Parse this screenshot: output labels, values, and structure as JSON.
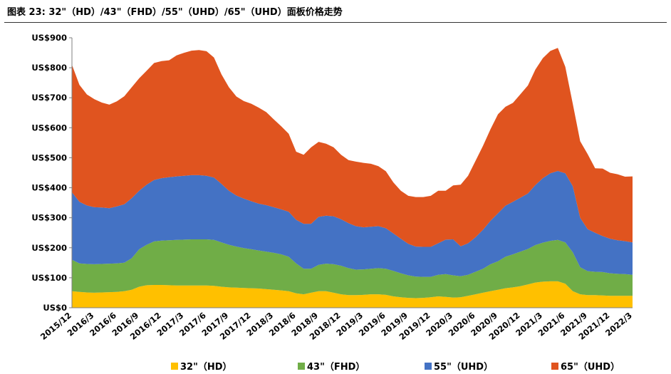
{
  "title": "图表 23: 32\"（HD）/43\"（FHD）/55\"（UHD）/65\"（UHD）面板价格走势",
  "chart_data": {
    "type": "area",
    "stacked": true,
    "title": "图表 23: 32\"（HD）/43\"（FHD）/55\"（UHD）/65\"（UHD）面板价格走势",
    "ylim": [
      0,
      900
    ],
    "y_ticks": [
      0,
      100,
      200,
      300,
      400,
      500,
      600,
      700,
      800,
      900
    ],
    "y_tick_labels": [
      "US$0",
      "US$100",
      "US$200",
      "US$300",
      "US$400",
      "US$500",
      "US$600",
      "US$700",
      "US$800",
      "US$900"
    ],
    "x_tick_labels": [
      "2015/12",
      "2016/3",
      "2016/6",
      "2016/9",
      "2016/12",
      "2017/3",
      "2017/6",
      "2017/9",
      "2017/12",
      "2018/3",
      "2018/6",
      "2018/9",
      "2018/12",
      "2019/3",
      "2019/6",
      "2019/9",
      "2019/12",
      "2020/3",
      "2020/6",
      "2020/9",
      "2020/12",
      "2021/3",
      "2021/6",
      "2021/9",
      "2021/12",
      "2022/3"
    ],
    "x_start": "2015/12",
    "x_end": "2022/3",
    "grid": false,
    "legend_position": "bottom",
    "series": [
      {
        "name": "32\"（HD）",
        "color": "#FFC000",
        "values": [
          55,
          53,
          51,
          50,
          51,
          52,
          53,
          55,
          60,
          70,
          75,
          76,
          76,
          75,
          74,
          74,
          74,
          74,
          74,
          73,
          70,
          68,
          67,
          66,
          65,
          64,
          62,
          60,
          58,
          55,
          48,
          45,
          50,
          55,
          55,
          50,
          45,
          42,
          42,
          43,
          45,
          45,
          43,
          38,
          35,
          33,
          32,
          33,
          35,
          38,
          36,
          34,
          35,
          40,
          45,
          50,
          55,
          60,
          65,
          68,
          72,
          78,
          84,
          87,
          88,
          88,
          80,
          55,
          45,
          42,
          42,
          41,
          40,
          40,
          40,
          40
        ]
      },
      {
        "name": "43\"（FHD）",
        "color": "#70AD47",
        "values": [
          105,
          95,
          95,
          95,
          95,
          95,
          95,
          95,
          105,
          125,
          135,
          145,
          148,
          150,
          152,
          153,
          154,
          154,
          154,
          153,
          148,
          142,
          137,
          133,
          130,
          127,
          125,
          123,
          120,
          115,
          100,
          85,
          80,
          88,
          92,
          95,
          95,
          90,
          85,
          85,
          85,
          87,
          87,
          85,
          80,
          75,
          72,
          70,
          68,
          72,
          76,
          74,
          70,
          70,
          75,
          80,
          90,
          95,
          105,
          110,
          115,
          118,
          125,
          130,
          135,
          138,
          138,
          130,
          90,
          80,
          78,
          78,
          75,
          73,
          72,
          70
        ]
      },
      {
        "name": "55\"（UHD）",
        "color": "#4472C4",
        "values": [
          225,
          205,
          195,
          190,
          188,
          185,
          190,
          195,
          200,
          195,
          200,
          205,
          208,
          210,
          212,
          213,
          214,
          214,
          212,
          208,
          195,
          180,
          170,
          165,
          160,
          156,
          155,
          152,
          150,
          150,
          145,
          150,
          150,
          160,
          160,
          160,
          155,
          150,
          145,
          140,
          140,
          140,
          135,
          125,
          115,
          105,
          100,
          100,
          100,
          105,
          115,
          120,
          100,
          105,
          115,
          130,
          145,
          160,
          170,
          175,
          180,
          185,
          200,
          215,
          225,
          230,
          230,
          220,
          165,
          140,
          130,
          120,
          115,
          112,
          110,
          108
        ]
      },
      {
        "name": "65\"（UHD）",
        "color": "#E0541F",
        "values": [
          425,
          390,
          370,
          360,
          350,
          345,
          350,
          360,
          370,
          375,
          380,
          390,
          390,
          390,
          403,
          410,
          415,
          417,
          415,
          400,
          365,
          345,
          330,
          325,
          325,
          320,
          310,
          293,
          277,
          260,
          227,
          230,
          255,
          250,
          240,
          230,
          215,
          210,
          215,
          215,
          210,
          200,
          190,
          170,
          160,
          160,
          165,
          166,
          170,
          175,
          163,
          180,
          205,
          225,
          255,
          280,
          305,
          330,
          330,
          330,
          345,
          360,
          385,
          400,
          408,
          410,
          355,
          275,
          255,
          250,
          215,
          225,
          220,
          220,
          215,
          220
        ]
      }
    ]
  },
  "legend": {
    "items": [
      {
        "label": "32\"（HD）",
        "color": "#FFC000"
      },
      {
        "label": "43\"（FHD）",
        "color": "#70AD47"
      },
      {
        "label": "55\"（UHD）",
        "color": "#4472C4"
      },
      {
        "label": "65\"（UHD）",
        "color": "#E0541F"
      }
    ]
  }
}
